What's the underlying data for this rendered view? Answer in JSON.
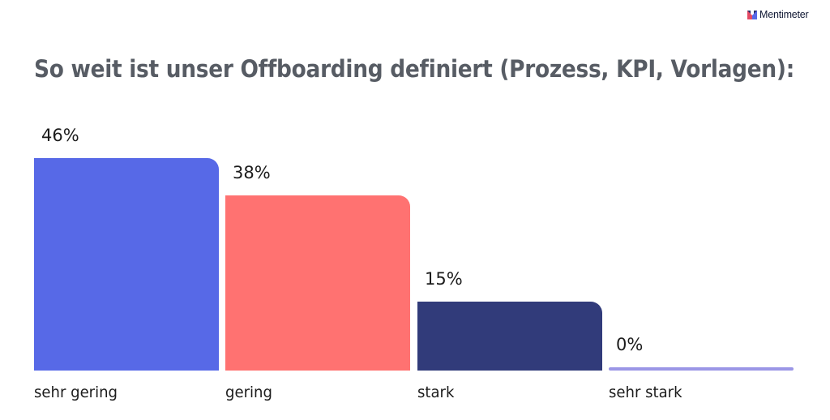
{
  "brand": {
    "name": "Mentimeter",
    "logo_colors": [
      "#2b2f6b",
      "#e34963",
      "#5769e7"
    ]
  },
  "title": "So weit ist unser Offboarding definiert (Prozess, KPI, Vorlagen):",
  "chart_data": {
    "type": "bar",
    "title": "So weit ist unser Offboarding definiert (Prozess, KPI, Vorlagen):",
    "categories": [
      "sehr gering",
      "gering",
      "stark",
      "sehr stark"
    ],
    "values": [
      46,
      38,
      15,
      0
    ],
    "value_labels": [
      "46%",
      "38%",
      "15%",
      "0%"
    ],
    "colors": [
      "#5769e7",
      "#ff7271",
      "#313b7a",
      "#9b96e6"
    ],
    "unit": "%",
    "xlabel": "",
    "ylabel": "",
    "ylim": [
      0,
      46
    ],
    "grid": false,
    "legend": "none"
  }
}
